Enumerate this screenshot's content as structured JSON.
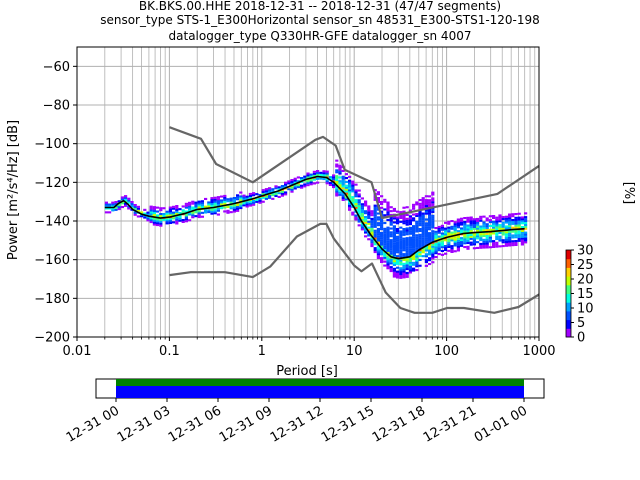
{
  "chart_data": {
    "type": "heatmap",
    "title_lines": [
      "BK.BKS.00.HHE   2018-12-31 -- 2018-12-31  (47/47 segments)",
      "sensor_type STS-1_E300Horizontal sensor_sn 48531_E300-STS1-120-198",
      "datalogger_type Q330HR-GFE datalogger_sn 4007"
    ],
    "xlabel": "Period [s]",
    "ylabel": "Power [m²/s⁴/Hz] [dB]",
    "xscale": "log",
    "xlim": [
      0.01,
      1000
    ],
    "ylim": [
      -200,
      -50
    ],
    "grid": true,
    "x_ticks": [
      {
        "value": 0.01,
        "label": "0.01"
      },
      {
        "value": 0.1,
        "label": "0.1"
      },
      {
        "value": 1,
        "label": "1"
      },
      {
        "value": 10,
        "label": "10"
      },
      {
        "value": 100,
        "label": "100"
      },
      {
        "value": 1000,
        "label": "1000"
      }
    ],
    "y_ticks": [
      {
        "value": -60,
        "label": "−60"
      },
      {
        "value": -80,
        "label": "−80"
      },
      {
        "value": -100,
        "label": "−100"
      },
      {
        "value": -120,
        "label": "−120"
      },
      {
        "value": -140,
        "label": "−140"
      },
      {
        "value": -160,
        "label": "−160"
      },
      {
        "value": -180,
        "label": "−180"
      },
      {
        "value": -200,
        "label": "−200"
      }
    ],
    "series": [
      {
        "role": "high-noise-model",
        "color": "#666666",
        "points": [
          [
            0.1,
            -91.5
          ],
          [
            0.22,
            -97.5
          ],
          [
            0.32,
            -110.5
          ],
          [
            0.8,
            -120
          ],
          [
            3.8,
            -98
          ],
          [
            4.6,
            -96.5
          ],
          [
            6.3,
            -101
          ],
          [
            7.9,
            -113.5
          ],
          [
            15.4,
            -120
          ],
          [
            20,
            -138.5
          ],
          [
            354.8,
            -126
          ],
          [
            1000,
            -111.5
          ]
        ]
      },
      {
        "role": "low-noise-model",
        "color": "#666666",
        "points": [
          [
            0.1,
            -168
          ],
          [
            0.17,
            -166.5
          ],
          [
            0.4,
            -166.5
          ],
          [
            0.8,
            -169
          ],
          [
            1.24,
            -163.5
          ],
          [
            2.4,
            -148
          ],
          [
            4.3,
            -141.5
          ],
          [
            5,
            -141.5
          ],
          [
            6,
            -149
          ],
          [
            10,
            -163
          ],
          [
            12,
            -166
          ],
          [
            15.6,
            -162
          ],
          [
            21.9,
            -177
          ],
          [
            31.6,
            -185
          ],
          [
            45,
            -187.5
          ],
          [
            70,
            -187.5
          ],
          [
            101,
            -185
          ],
          [
            154,
            -185
          ],
          [
            328,
            -187.5
          ],
          [
            600,
            -184.5
          ],
          [
            1000,
            -178
          ]
        ]
      },
      {
        "role": "mode",
        "color": "#000000",
        "points": [
          [
            0.02,
            -133
          ],
          [
            0.025,
            -133
          ],
          [
            0.028,
            -131
          ],
          [
            0.032,
            -129.5
          ],
          [
            0.036,
            -131.5
          ],
          [
            0.04,
            -134
          ],
          [
            0.05,
            -136.5
          ],
          [
            0.06,
            -137.5
          ],
          [
            0.08,
            -138.5
          ],
          [
            0.1,
            -138
          ],
          [
            0.15,
            -136
          ],
          [
            0.2,
            -134
          ],
          [
            0.3,
            -133
          ],
          [
            0.5,
            -131
          ],
          [
            0.8,
            -128.5
          ],
          [
            1,
            -127
          ],
          [
            1.5,
            -124.5
          ],
          [
            2,
            -122
          ],
          [
            3,
            -118.5
          ],
          [
            4,
            -117
          ],
          [
            5,
            -117.5
          ],
          [
            6,
            -120
          ],
          [
            8,
            -126
          ],
          [
            10,
            -133
          ],
          [
            12,
            -140
          ],
          [
            15,
            -147
          ],
          [
            20,
            -154.5
          ],
          [
            25,
            -158.5
          ],
          [
            30,
            -159.5
          ],
          [
            40,
            -158.5
          ],
          [
            50,
            -155
          ],
          [
            70,
            -151
          ],
          [
            100,
            -148.5
          ],
          [
            150,
            -146.5
          ],
          [
            200,
            -146
          ],
          [
            300,
            -145.5
          ],
          [
            500,
            -144.5
          ],
          [
            700,
            -144
          ]
        ]
      }
    ],
    "density": {
      "colorbar_label": "[%]",
      "colorbar_range": [
        0,
        30
      ],
      "colorbar_ticks": [
        {
          "value": 0,
          "label": "0"
        },
        {
          "value": 5,
          "label": "5"
        },
        {
          "value": 10,
          "label": "10"
        },
        {
          "value": 15,
          "label": "15"
        },
        {
          "value": 20,
          "label": "20"
        },
        {
          "value": 25,
          "label": "25"
        },
        {
          "value": 30,
          "label": "30"
        }
      ],
      "colormap": [
        "#ffffff",
        "#a000ff",
        "#0000ff",
        "#0050ff",
        "#00a0ff",
        "#00ffe0",
        "#40ff80",
        "#c0ff00",
        "#ffd000",
        "#ff6000",
        "#e00000"
      ]
    },
    "coverage": {
      "type": "timeline",
      "start": "2018-12-31 00:00",
      "end": "2019-01-01 00:00",
      "bar_colors": {
        "data": "#0000ff",
        "gaps": "#008000"
      },
      "tick_labels": [
        "12-31 00",
        "12-31 03",
        "12-31 06",
        "12-31 09",
        "12-31 12",
        "12-31 15",
        "12-31 18",
        "12-31 21",
        "01-01 00"
      ]
    }
  }
}
